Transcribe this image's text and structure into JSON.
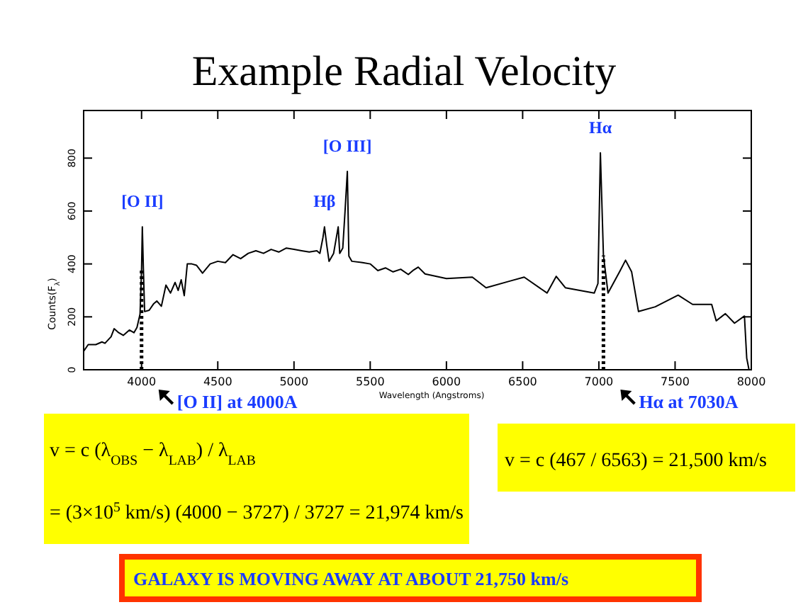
{
  "chart_data": {
    "type": "line",
    "title": "Example Radial Velocity",
    "xlabel": "Wavelength (Angstroms)",
    "ylabel": "Counts(F$_{λ}$)",
    "xlim": [
      3620,
      8000
    ],
    "ylim": [
      0,
      980
    ],
    "xticks": [
      4000,
      4500,
      5000,
      5500,
      6000,
      6500,
      7000,
      7500,
      8000
    ],
    "yticks": [
      0,
      200,
      400,
      600,
      800
    ],
    "series": [
      {
        "color": "#000000",
        "x": [
          3620,
          3650,
          3700,
          3740,
          3760,
          3800,
          3820,
          3850,
          3880,
          3920,
          3950,
          3970,
          3990,
          4000,
          4005,
          4012,
          4020,
          4050,
          4080,
          4100,
          4130,
          4160,
          4190,
          4220,
          4240,
          4260,
          4280,
          4300,
          4330,
          4360,
          4400,
          4450,
          4500,
          4550,
          4600,
          4650,
          4700,
          4750,
          4800,
          4850,
          4900,
          4950,
          5000,
          5050,
          5100,
          5150,
          5170,
          5190,
          5200,
          5215,
          5230,
          5260,
          5290,
          5300,
          5320,
          5335,
          5350,
          5360,
          5380,
          5450,
          5500,
          5550,
          5600,
          5650,
          5700,
          5750,
          5780,
          5815,
          5860,
          6000,
          6170,
          6260,
          6415,
          6510,
          6660,
          6720,
          6780,
          6970,
          6994,
          7010,
          7030,
          7060,
          7140,
          7175,
          7215,
          7260,
          7370,
          7520,
          7615,
          7740,
          7770,
          7830,
          7890,
          7955,
          7970,
          7985
        ],
        "values": [
          70,
          95,
          95,
          105,
          100,
          125,
          155,
          140,
          130,
          150,
          140,
          160,
          210,
          380,
          540,
          380,
          220,
          225,
          250,
          260,
          240,
          320,
          290,
          330,
          300,
          340,
          280,
          400,
          400,
          395,
          365,
          400,
          410,
          405,
          435,
          420,
          440,
          450,
          440,
          455,
          445,
          460,
          455,
          450,
          445,
          450,
          440,
          500,
          540,
          470,
          410,
          440,
          540,
          440,
          460,
          600,
          750,
          430,
          410,
          405,
          400,
          375,
          385,
          370,
          380,
          360,
          375,
          388,
          362,
          345,
          350,
          310,
          335,
          350,
          290,
          353,
          310,
          290,
          326,
          820,
          432,
          290,
          375,
          414,
          370,
          220,
          238,
          282,
          247,
          247,
          185,
          212,
          176,
          203,
          44,
          0
        ]
      }
    ],
    "ref_lines": [
      {
        "axis": "x",
        "value": 4000,
        "line_style": "dotted",
        "color": "#000000"
      },
      {
        "axis": "x",
        "value": 7030,
        "line_style": "dotted",
        "color": "#000000"
      }
    ],
    "annotations": [
      {
        "text": "[O II]",
        "x": 4005,
        "y": 540
      },
      {
        "text": "Hβ",
        "x": 5200,
        "y": 540
      },
      {
        "text": "[O III]",
        "x": 5350,
        "y": 750
      },
      {
        "text": "Hα",
        "x": 7010,
        "y": 820
      },
      {
        "text": "[O II] at 4000A",
        "x": 4000,
        "y": 0
      },
      {
        "text": "Hα at 7030A",
        "x": 7030,
        "y": 0
      },
      "v = c (λ$_{OBS}$ − λ$_{LAB}$) / λ$_{LAB}$",
      "= (3×10$^{5}$ km/s) (4000 − 3727) / 3727 = 21,974 km/s",
      "v = c (467 / 6563) = 21,500 km/s",
      "GALAXY IS MOVING AWAY AT ABOUT 21,750 km/s"
    ],
    "grid": false,
    "marker": "none",
    "line_style": "solid"
  }
}
